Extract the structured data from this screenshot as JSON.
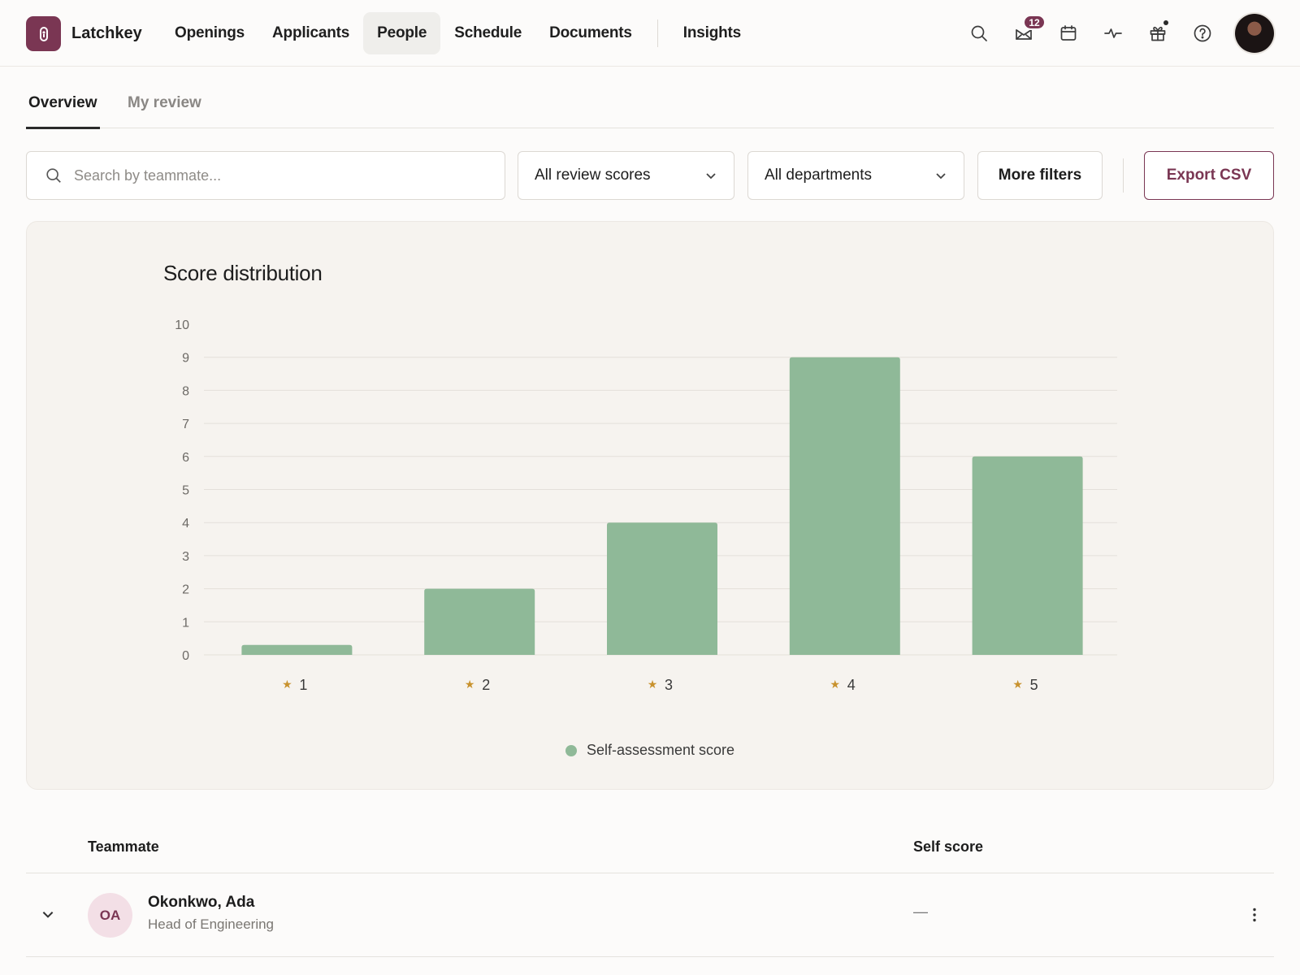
{
  "app": {
    "name": "Latchkey"
  },
  "nav": {
    "items": [
      {
        "label": "Openings",
        "active": false
      },
      {
        "label": "Applicants",
        "active": false
      },
      {
        "label": "People",
        "active": true
      },
      {
        "label": "Schedule",
        "active": false
      },
      {
        "label": "Documents",
        "active": false
      }
    ],
    "after_divider": {
      "label": "Insights",
      "active": false
    }
  },
  "header_icons": {
    "inbox_badge": "12",
    "icons": [
      "search-icon",
      "inbox-icon",
      "calendar-icon",
      "activity-icon",
      "gift-icon",
      "help-icon"
    ]
  },
  "tabs": [
    {
      "label": "Overview",
      "active": true
    },
    {
      "label": "My review",
      "active": false
    }
  ],
  "filters": {
    "search_placeholder": "Search by teammate...",
    "review_scores": "All review scores",
    "departments": "All departments",
    "more_filters": "More filters",
    "export": "Export CSV"
  },
  "colors": {
    "accent": "#7a3653",
    "bar": "#8fb998",
    "star": "#c8922e"
  },
  "chart_data": {
    "type": "bar",
    "title": "Score distribution",
    "categories": [
      "1",
      "2",
      "3",
      "4",
      "5"
    ],
    "series": [
      {
        "name": "Self-assessment score",
        "values": [
          0.3,
          2,
          4,
          9,
          6
        ]
      }
    ],
    "ylim": [
      0,
      10
    ],
    "yticks": [
      0,
      1,
      2,
      3,
      4,
      5,
      6,
      7,
      8,
      9,
      10
    ],
    "category_prefix_icon": "star-icon",
    "grid": true,
    "legend": "bottom-center"
  },
  "table": {
    "columns": [
      "Teammate",
      "Self score"
    ],
    "rows": [
      {
        "initials": "OA",
        "name": "Okonkwo, Ada",
        "role": "Head of Engineering",
        "self_score": "—"
      }
    ]
  }
}
